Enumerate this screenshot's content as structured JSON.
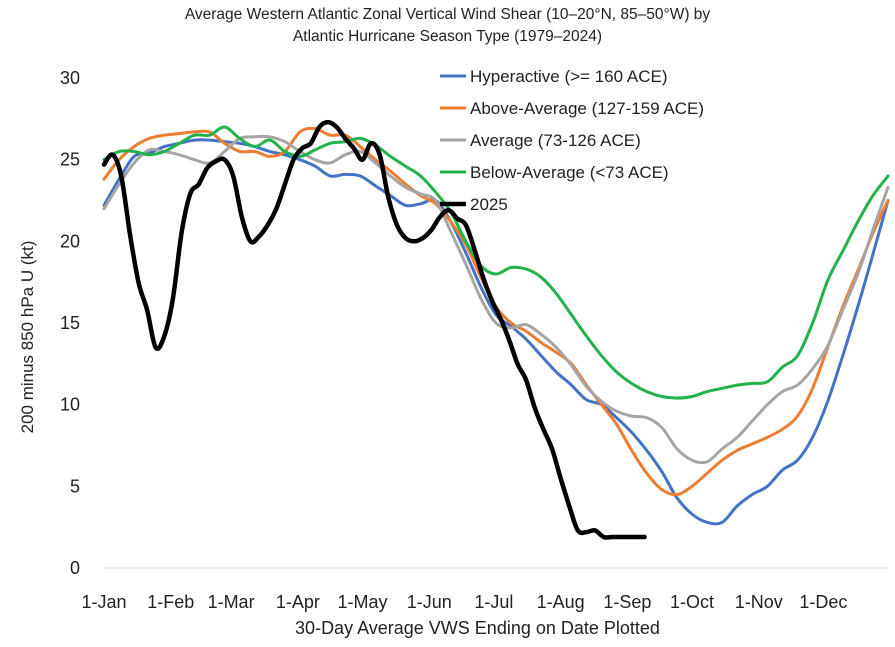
{
  "chart_data": {
    "type": "line",
    "title_line1": "Average Western Atlantic Zonal Vertical Wind Shear (10–20°N, 85–50°W) by",
    "title_line2": "Atlantic Hurricane Season Type (1979–2024)",
    "xlabel": "30-Day Average VWS Ending on Date Plotted",
    "ylabel": "200 minus 850 hPa U (kt)",
    "ylim": [
      0,
      30
    ],
    "yticks": [
      "0",
      "5",
      "10",
      "15",
      "20",
      "25",
      "30"
    ],
    "xlim": [
      1,
      365
    ],
    "xticks": [
      {
        "label": "1-Jan",
        "day": 1
      },
      {
        "label": "1-Feb",
        "day": 32
      },
      {
        "label": "1-Mar",
        "day": 60
      },
      {
        "label": "1-Apr",
        "day": 91
      },
      {
        "label": "1-May",
        "day": 121
      },
      {
        "label": "1-Jun",
        "day": 152
      },
      {
        "label": "1-Jul",
        "day": 182
      },
      {
        "label": "1-Aug",
        "day": 213
      },
      {
        "label": "1-Sep",
        "day": 244
      },
      {
        "label": "1-Oct",
        "day": 274
      },
      {
        "label": "1-Nov",
        "day": 305
      },
      {
        "label": "1-Dec",
        "day": 335
      }
    ],
    "grid": false,
    "legend_position": "top-right",
    "series": [
      {
        "name": "Hyperactive (>= 160 ACE)",
        "color": "#4472c4",
        "width": 3,
        "x": [
          1,
          8,
          15,
          22,
          29,
          36,
          43,
          50,
          57,
          64,
          71,
          78,
          85,
          92,
          99,
          106,
          113,
          120,
          127,
          134,
          141,
          148,
          155,
          162,
          169,
          176,
          183,
          190,
          197,
          204,
          211,
          218,
          225,
          232,
          239,
          246,
          253,
          260,
          267,
          274,
          281,
          288,
          295,
          302,
          309,
          316,
          323,
          330,
          337,
          344,
          351,
          358,
          365
        ],
        "y": [
          22.2,
          23.8,
          25.2,
          25.4,
          25.8,
          26.0,
          26.2,
          26.2,
          26.1,
          26.0,
          25.8,
          25.5,
          25.3,
          25.0,
          24.6,
          24.0,
          24.1,
          24.0,
          23.4,
          22.8,
          22.2,
          22.3,
          22.5,
          21.2,
          19.3,
          17.2,
          15.5,
          14.8,
          14.0,
          13.0,
          12.0,
          11.2,
          10.3,
          10.0,
          9.2,
          8.3,
          7.2,
          5.9,
          4.3,
          3.3,
          2.8,
          2.8,
          3.8,
          4.5,
          5.0,
          6.0,
          6.6,
          8.0,
          10.2,
          13.0,
          16.0,
          19.2,
          22.5
        ]
      },
      {
        "name": "Above-Average (127-159 ACE)",
        "color": "#ed7d31",
        "width": 3,
        "x": [
          1,
          8,
          15,
          22,
          29,
          36,
          43,
          50,
          57,
          64,
          71,
          78,
          85,
          92,
          99,
          106,
          113,
          120,
          127,
          134,
          141,
          148,
          155,
          162,
          169,
          176,
          183,
          190,
          197,
          204,
          211,
          218,
          225,
          232,
          239,
          246,
          253,
          260,
          267,
          274,
          281,
          288,
          295,
          302,
          309,
          316,
          323,
          330,
          337,
          344,
          351,
          358,
          365
        ],
        "y": [
          23.8,
          25.0,
          25.8,
          26.3,
          26.5,
          26.6,
          26.7,
          26.7,
          26.0,
          25.5,
          25.5,
          25.2,
          25.5,
          26.7,
          26.9,
          26.5,
          26.5,
          25.8,
          25.0,
          24.3,
          23.5,
          22.8,
          22.3,
          21.2,
          19.8,
          17.8,
          16.0,
          15.0,
          14.5,
          13.8,
          13.2,
          12.5,
          11.2,
          10.0,
          8.8,
          7.2,
          5.8,
          4.8,
          4.5,
          5.0,
          5.8,
          6.6,
          7.2,
          7.6,
          8.0,
          8.5,
          9.3,
          11.0,
          13.5,
          16.0,
          18.2,
          20.5,
          22.5
        ]
      },
      {
        "name": "Average (73-126 ACE)",
        "color": "#a5a5a5",
        "width": 3,
        "x": [
          1,
          8,
          15,
          22,
          29,
          36,
          43,
          50,
          57,
          64,
          71,
          78,
          85,
          92,
          99,
          106,
          113,
          120,
          127,
          134,
          141,
          148,
          155,
          162,
          169,
          176,
          183,
          190,
          197,
          204,
          211,
          218,
          225,
          232,
          239,
          246,
          253,
          260,
          267,
          274,
          281,
          288,
          295,
          302,
          309,
          316,
          323,
          330,
          337,
          344,
          351,
          358,
          365
        ],
        "y": [
          22.0,
          23.5,
          24.8,
          25.6,
          25.5,
          25.3,
          25.0,
          24.8,
          25.5,
          26.3,
          26.4,
          26.4,
          26.1,
          25.5,
          25.0,
          24.8,
          25.3,
          25.5,
          24.8,
          24.0,
          23.3,
          22.9,
          22.5,
          20.6,
          18.6,
          16.5,
          15.0,
          14.7,
          14.9,
          14.3,
          13.5,
          12.4,
          11.1,
          10.2,
          9.6,
          9.3,
          9.2,
          8.6,
          7.3,
          6.6,
          6.5,
          7.3,
          8.0,
          9.0,
          10.0,
          10.8,
          11.2,
          12.2,
          13.6,
          15.8,
          18.0,
          20.7,
          23.3
        ]
      },
      {
        "name": "Below-Average (<73 ACE)",
        "color": "#22b24c",
        "width": 3,
        "x": [
          1,
          8,
          15,
          22,
          29,
          36,
          43,
          50,
          57,
          64,
          71,
          78,
          85,
          92,
          99,
          106,
          113,
          120,
          127,
          134,
          141,
          148,
          155,
          162,
          169,
          176,
          183,
          190,
          197,
          204,
          211,
          218,
          225,
          232,
          239,
          246,
          253,
          260,
          267,
          274,
          281,
          288,
          295,
          302,
          309,
          316,
          323,
          330,
          337,
          344,
          351,
          358,
          365
        ],
        "y": [
          25.0,
          25.5,
          25.5,
          25.3,
          25.5,
          26.0,
          26.5,
          26.5,
          27.0,
          26.3,
          25.8,
          26.2,
          25.5,
          25.2,
          25.6,
          26.0,
          26.1,
          26.3,
          25.9,
          25.2,
          24.6,
          24.0,
          23.0,
          21.8,
          20.0,
          18.5,
          18.0,
          18.4,
          18.3,
          17.8,
          16.8,
          15.5,
          14.2,
          13.0,
          12.0,
          11.3,
          10.8,
          10.5,
          10.4,
          10.5,
          10.8,
          11.0,
          11.2,
          11.3,
          11.4,
          12.3,
          13.0,
          15.0,
          17.6,
          19.4,
          21.2,
          22.8,
          24.0
        ]
      },
      {
        "name": "2025",
        "color": "#000000",
        "width": 4.5,
        "x": [
          1,
          5,
          9,
          13,
          17,
          21,
          25,
          29,
          33,
          37,
          41,
          45,
          49,
          53,
          57,
          61,
          65,
          69,
          73,
          77,
          81,
          85,
          89,
          93,
          97,
          101,
          105,
          109,
          113,
          117,
          121,
          125,
          129,
          133,
          137,
          141,
          145,
          149,
          153,
          157,
          161,
          165,
          169,
          173,
          177,
          181,
          185,
          189,
          193,
          197,
          201,
          205,
          209,
          213,
          217,
          221,
          225,
          229,
          233,
          237,
          240,
          244,
          248,
          252
        ],
        "y": [
          24.7,
          25.3,
          24.0,
          20.5,
          17.5,
          15.8,
          13.5,
          14.2,
          16.5,
          20.5,
          22.9,
          23.5,
          24.5,
          24.9,
          25.0,
          24.0,
          21.5,
          20.0,
          20.3,
          21.0,
          22.0,
          23.5,
          25.0,
          25.7,
          26.0,
          27.0,
          27.3,
          27.0,
          26.3,
          25.7,
          25.0,
          26.0,
          25.3,
          22.7,
          21.0,
          20.2,
          20.0,
          20.2,
          20.7,
          21.5,
          21.9,
          21.4,
          21.0,
          19.5,
          17.8,
          16.4,
          15.3,
          14.0,
          12.5,
          11.5,
          9.8,
          8.5,
          7.3,
          5.5,
          3.8,
          2.3,
          2.2,
          2.3,
          1.9,
          1.9,
          1.9,
          1.9,
          1.9,
          1.9
        ]
      }
    ]
  }
}
